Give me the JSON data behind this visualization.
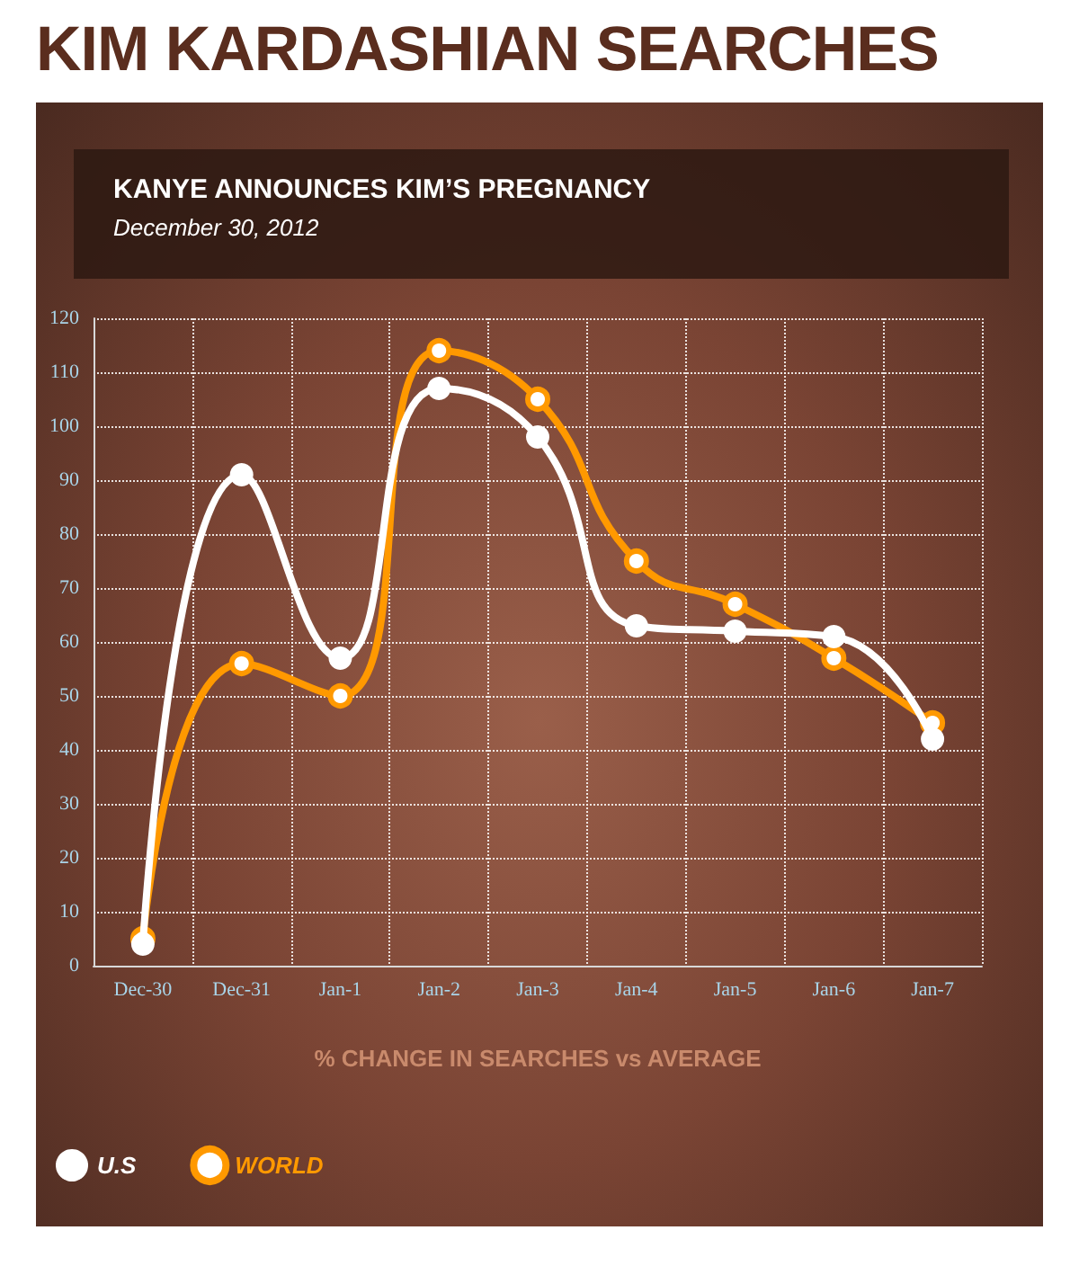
{
  "chart_data": {
    "type": "line",
    "title": "KIM KARDASHIAN SEARCHES",
    "subtitle": "KANYE ANNOUNCES KIM’S PREGNANCY",
    "annotations": [
      "December 30, 2012"
    ],
    "xlabel": "% CHANGE IN SEARCHES vs AVERAGE",
    "categories": [
      "Dec-30",
      "Dec-31",
      "Jan-1",
      "Jan-2",
      "Jan-3",
      "Jan-4",
      "Jan-5",
      "Jan-6",
      "Jan-7"
    ],
    "series": [
      {
        "name": "U.S",
        "color": "#ffffff",
        "values": [
          4,
          91,
          57,
          107,
          98,
          63,
          62,
          61,
          42
        ]
      },
      {
        "name": "WORLD",
        "color": "#ff9900",
        "values": [
          5,
          56,
          50,
          114,
          105,
          75,
          67,
          57,
          45
        ]
      }
    ],
    "ylim": [
      0,
      120
    ],
    "yticks": [
      0,
      10,
      20,
      30,
      40,
      50,
      60,
      70,
      80,
      90,
      100,
      110,
      120
    ],
    "grid": true,
    "legend": "bottom left",
    "marker": "circle",
    "line_style": "solid"
  }
}
